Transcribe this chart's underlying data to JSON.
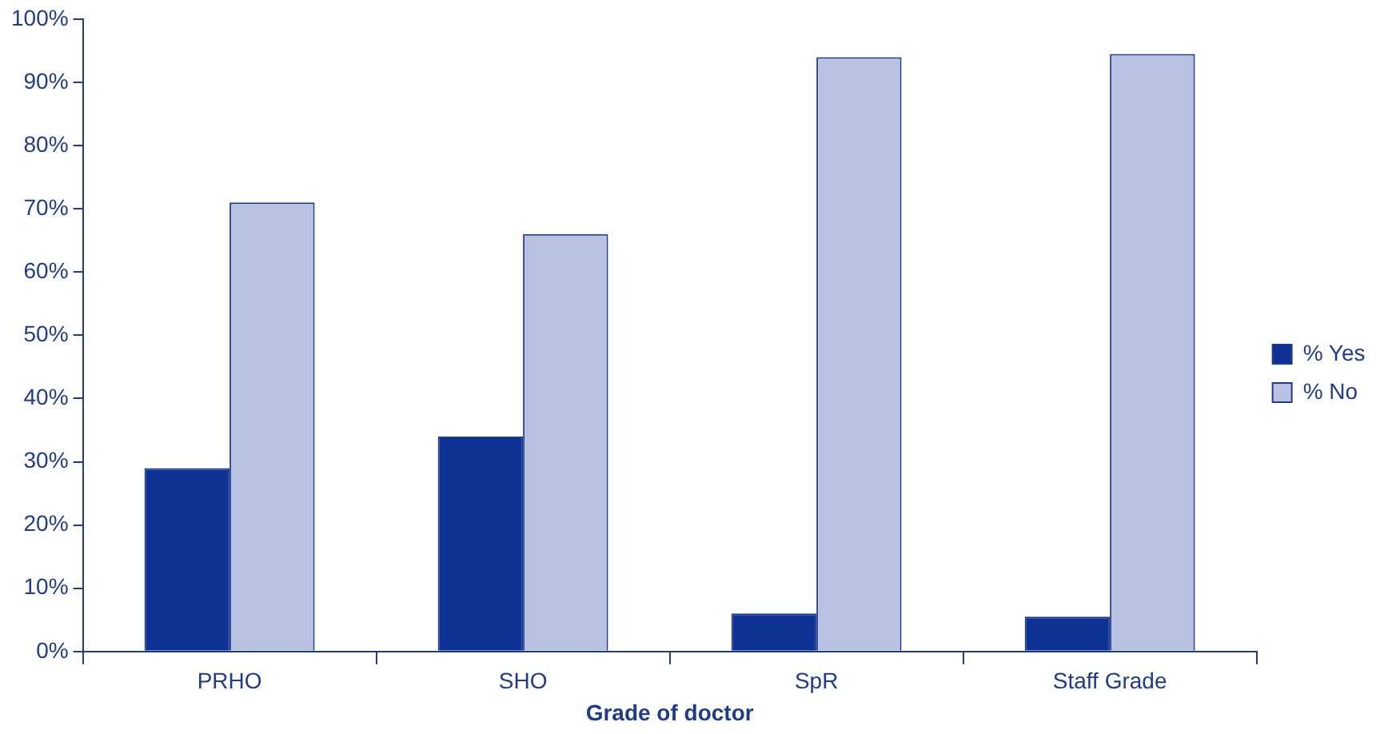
{
  "chart_data": {
    "type": "bar",
    "xlabel": "Grade of doctor",
    "categories": [
      "PRHO",
      "SHO",
      "SpR",
      "Staff Grade"
    ],
    "series": [
      {
        "name": "% Yes",
        "color": "#0d3293",
        "values": [
          29,
          34,
          6,
          5.5
        ]
      },
      {
        "name": "% No",
        "color": "#b8c2e0",
        "values": [
          71,
          66,
          94,
          94.5
        ]
      }
    ],
    "ylim": [
      0,
      100
    ],
    "yticks": [
      {
        "value": 0,
        "label": "0%"
      },
      {
        "value": 10,
        "label": "10%"
      },
      {
        "value": 20,
        "label": "20%"
      },
      {
        "value": 30,
        "label": "30%"
      },
      {
        "value": 40,
        "label": "40%"
      },
      {
        "value": 50,
        "label": "50%"
      },
      {
        "value": 60,
        "label": "60%"
      },
      {
        "value": 70,
        "label": "70%"
      },
      {
        "value": 80,
        "label": "80%"
      },
      {
        "value": 90,
        "label": "90%"
      },
      {
        "value": 100,
        "label": "100%"
      }
    ],
    "grid": false,
    "legend": "right"
  }
}
